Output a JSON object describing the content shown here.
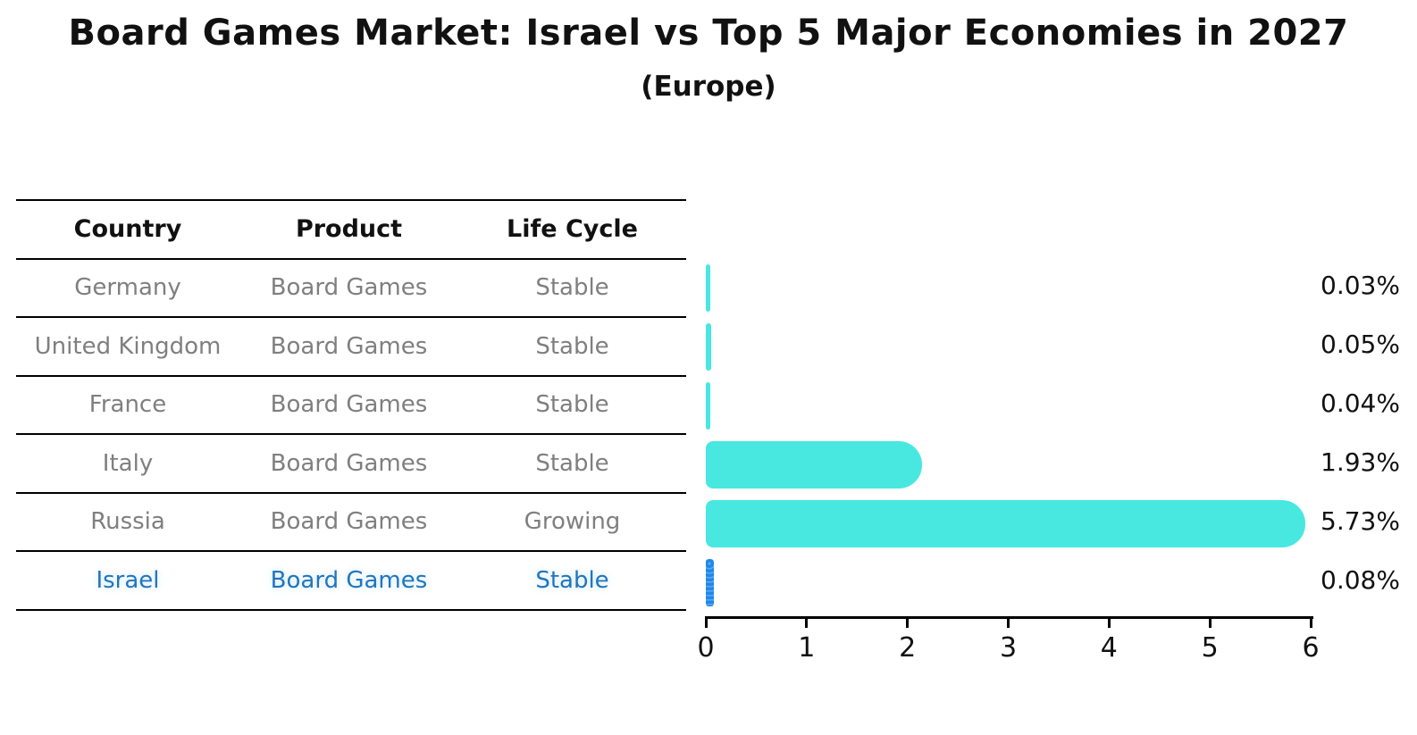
{
  "title": "Board Games Market: Israel vs Top 5 Major Economies in 2027",
  "subtitle": "(Europe)",
  "table": {
    "headers": [
      "Country",
      "Product",
      "Life Cycle"
    ],
    "rows": [
      {
        "country": "Germany",
        "product": "Board Games",
        "life_cycle": "Stable"
      },
      {
        "country": "United Kingdom",
        "product": "Board Games",
        "life_cycle": "Stable"
      },
      {
        "country": "France",
        "product": "Board Games",
        "life_cycle": "Stable"
      },
      {
        "country": "Italy",
        "product": "Board Games",
        "life_cycle": "Stable"
      },
      {
        "country": "Russia",
        "product": "Board Games",
        "life_cycle": "Growing"
      },
      {
        "country": "Israel",
        "product": "Board Games",
        "life_cycle": "Stable"
      }
    ],
    "highlighted_row": "Israel",
    "highlight_text_color": "#2176bd",
    "body_text_color": "#7f7f7f",
    "header_text_color": "#111111"
  },
  "chart_data": {
    "type": "bar",
    "orientation": "horizontal",
    "categories": [
      "Germany",
      "United Kingdom",
      "France",
      "Italy",
      "Russia",
      "Israel"
    ],
    "values": [
      0.03,
      0.05,
      0.04,
      1.93,
      5.73,
      0.08
    ],
    "value_labels": [
      "0.03%",
      "0.05%",
      "0.04%",
      "1.93%",
      "5.73%",
      "0.08%"
    ],
    "xlim": [
      0,
      6
    ],
    "x_ticks": [
      "0",
      "1",
      "2",
      "3",
      "4",
      "5",
      "6"
    ],
    "grid": false,
    "bar_color": "#48e8e1",
    "highlight_bar_color": "#2187ec",
    "label_color": "#111111"
  }
}
